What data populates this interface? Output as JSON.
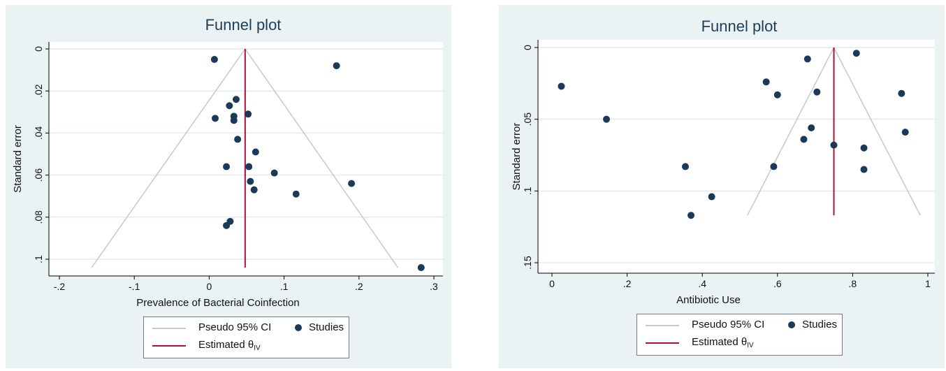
{
  "colors": {
    "panel_bg": "#eaf2f3",
    "plot_bg": "#ffffff",
    "grid": "#e4ebeb",
    "title": "#1e3d5b",
    "ci_line": "#c8c8c8",
    "estimate_line": "#b0103a",
    "dot": "#1b3a5a"
  },
  "icons": {
    "ci_legend": "gray-line-icon",
    "studies_legend": "navy-dot-icon",
    "estimate_legend": "red-line-icon"
  },
  "chart_data": [
    {
      "type": "scatter",
      "title": "Funnel plot",
      "xlabel": "Prevalence of Bacterial Coinfection",
      "ylabel": "Standard error",
      "xlim": [
        -0.2,
        0.3
      ],
      "ylim": [
        0,
        0.1
      ],
      "y_reversed": true,
      "x_ticks": [
        "-.2",
        "-.1",
        "0",
        ".1",
        ".2",
        ".3"
      ],
      "x_tick_values": [
        -0.2,
        -0.1,
        0,
        0.1,
        0.2,
        0.3
      ],
      "y_ticks": [
        "0",
        ".02",
        ".04",
        ".06",
        ".08",
        ".1"
      ],
      "y_tick_values": [
        0,
        0.02,
        0.04,
        0.06,
        0.08,
        0.1
      ],
      "grid": "horizontal",
      "estimate": 0.048,
      "ci_funnel": {
        "apex": [
          0.048,
          0
        ],
        "left": [
          -0.157,
          0.104
        ],
        "right": [
          0.252,
          0.104
        ]
      },
      "series": [
        {
          "points": [
            [
              0.007,
              0.005
            ],
            [
              0.17,
              0.008
            ],
            [
              0.036,
              0.024
            ],
            [
              0.027,
              0.027
            ],
            [
              0.008,
              0.033
            ],
            [
              0.033,
              0.032
            ],
            [
              0.052,
              0.031
            ],
            [
              0.033,
              0.034
            ],
            [
              0.038,
              0.043
            ],
            [
              0.062,
              0.049
            ],
            [
              0.023,
              0.056
            ],
            [
              0.053,
              0.056
            ],
            [
              0.087,
              0.059
            ],
            [
              0.055,
              0.063
            ],
            [
              0.19,
              0.064
            ],
            [
              0.06,
              0.067
            ],
            [
              0.116,
              0.069
            ],
            [
              0.028,
              0.082
            ],
            [
              0.023,
              0.084
            ],
            [
              0.283,
              0.104
            ]
          ]
        }
      ],
      "legend": {
        "ci": "Pseudo 95% CI",
        "studies": "Studies",
        "estimate": "Estimated θ",
        "estimate_sub": "IV"
      }
    },
    {
      "type": "scatter",
      "title": "Funnel plot",
      "xlabel": "Antibiotic Use",
      "ylabel": "Standard error",
      "xlim": [
        0,
        1
      ],
      "ylim": [
        0,
        0.15
      ],
      "y_reversed": true,
      "x_ticks": [
        "0",
        ".2",
        ".4",
        ".6",
        ".8",
        "1"
      ],
      "x_tick_values": [
        0,
        0.2,
        0.4,
        0.6,
        0.8,
        1.0
      ],
      "y_ticks": [
        "0",
        ".05",
        ".1",
        ".15"
      ],
      "y_tick_values": [
        0,
        0.05,
        0.1,
        0.15
      ],
      "grid": "horizontal",
      "estimate": 0.75,
      "ci_funnel": {
        "apex": [
          0.75,
          0
        ],
        "left": [
          0.52,
          0.117
        ],
        "right": [
          0.98,
          0.117
        ]
      },
      "series": [
        {
          "points": [
            [
              0.81,
              0.004
            ],
            [
              0.68,
              0.008
            ],
            [
              0.025,
              0.027
            ],
            [
              0.57,
              0.024
            ],
            [
              0.6,
              0.033
            ],
            [
              0.705,
              0.031
            ],
            [
              0.93,
              0.032
            ],
            [
              0.145,
              0.05
            ],
            [
              0.69,
              0.056
            ],
            [
              0.94,
              0.059
            ],
            [
              0.67,
              0.064
            ],
            [
              0.75,
              0.068
            ],
            [
              0.83,
              0.07
            ],
            [
              0.355,
              0.083
            ],
            [
              0.59,
              0.083
            ],
            [
              0.83,
              0.085
            ],
            [
              0.425,
              0.104
            ],
            [
              0.37,
              0.117
            ]
          ]
        }
      ],
      "legend": {
        "ci": "Pseudo 95% CI",
        "studies": "Studies",
        "estimate": "Estimated θ",
        "estimate_sub": "IV"
      }
    }
  ]
}
